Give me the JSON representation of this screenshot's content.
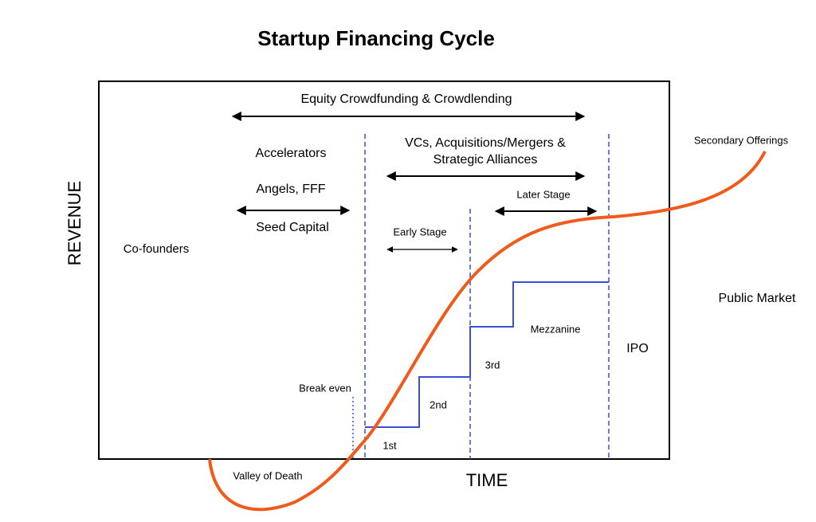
{
  "title": "Startup Financing Cycle",
  "axes": {
    "y_label": "REVENUE",
    "x_label": "TIME"
  },
  "labels": {
    "equity": "Equity Crowdfunding & Crowdlending",
    "accelerators": "Accelerators",
    "angels": "Angels, FFF",
    "seed": "Seed Capital",
    "vcs_line1": "VCs, Acquisitions/Mergers &",
    "vcs_line2": "Strategic Alliances",
    "later_stage": "Later Stage",
    "early_stage": "Early Stage",
    "cofounders": "Co-founders",
    "public_market": "Public Market",
    "secondary": "Secondary Offerings",
    "mezzanine": "Mezzanine",
    "ipo": "IPO",
    "third": "3rd",
    "break_even": "Break even",
    "second": "2nd",
    "first": "1st",
    "valley": "Valley of Death"
  }
}
